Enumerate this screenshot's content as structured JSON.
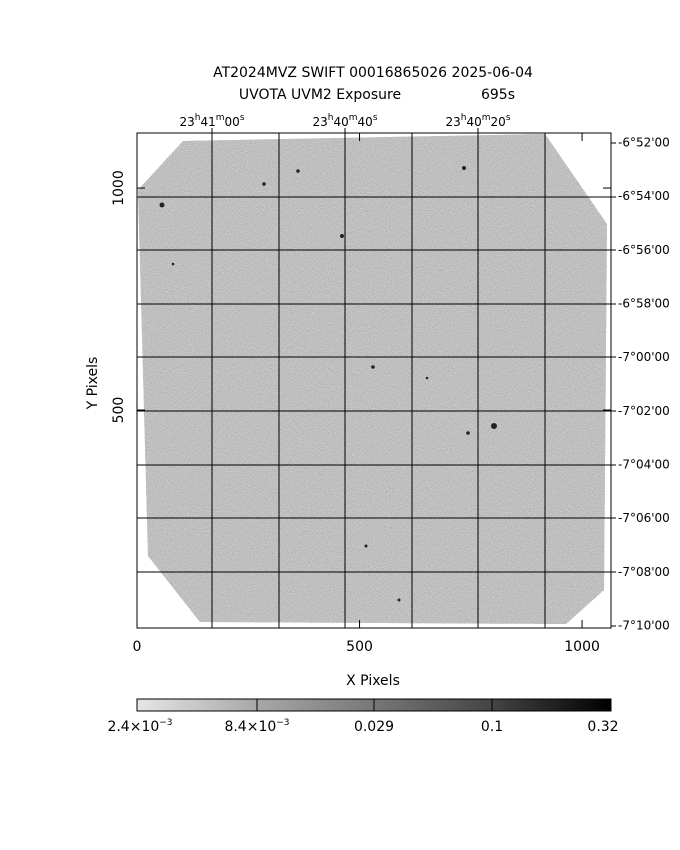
{
  "title": "AT2024MVZ SWIFT 00016865026 2025-06-04",
  "subtitle": [
    "UVOTA UVM2 Exposure",
    "695s"
  ],
  "x_label": "X Pixels",
  "y_label": "Y Pixels",
  "xlim": [
    0,
    1065
  ],
  "ylim": [
    9,
    1124
  ],
  "xticks": [
    0,
    500,
    1000
  ],
  "yticks": [
    500,
    1000
  ],
  "ra_labels": [
    [
      "23",
      "h",
      "41",
      "m",
      "00",
      "s"
    ],
    [
      "23",
      "h",
      "40",
      "m",
      "40",
      "s"
    ],
    [
      "23",
      "h",
      "40",
      "m",
      "20",
      "s"
    ]
  ],
  "dec_labels": [
    "-6°52'00",
    "-6°54'00",
    "-6°56'00",
    "-6°58'00",
    "-7°00'00",
    "-7°02'00",
    "-7°04'00",
    "-7°06'00",
    "-7°08'00",
    "-7°10'00"
  ],
  "colorbar_labels": [
    [
      "2.4×10",
      "−3"
    ],
    [
      "8.4×10",
      "−3"
    ],
    [
      "0.029"
    ],
    [
      "0.1"
    ],
    [
      "0.32"
    ]
  ]
}
